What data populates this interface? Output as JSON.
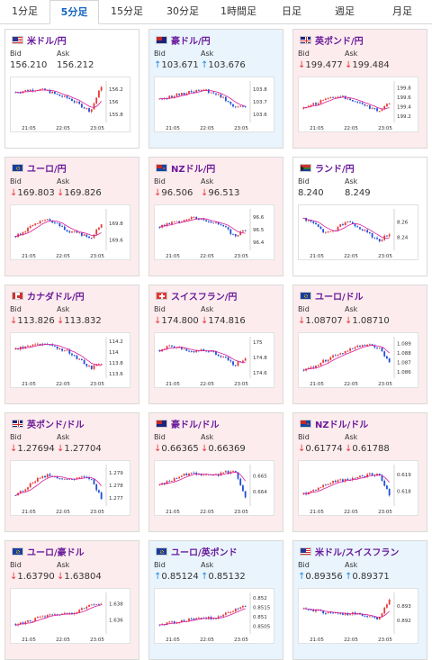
{
  "tabs": [
    {
      "label": "1分足",
      "active": false
    },
    {
      "label": "5分足",
      "active": true
    },
    {
      "label": "15分足",
      "active": false
    },
    {
      "label": "30分足",
      "active": false
    },
    {
      "label": "1時間足",
      "active": false
    },
    {
      "label": "日足",
      "active": false
    },
    {
      "label": "週足",
      "active": false
    },
    {
      "label": "月足",
      "active": false
    }
  ],
  "labels": {
    "bid": "Bid",
    "ask": "Ask"
  },
  "colors": {
    "up": "#1e88e5",
    "down": "#e53935",
    "pair": "#6a1b9a",
    "ma": "#d81b9a"
  },
  "cards": [
    {
      "pair": "米ドル/円",
      "flag": "us",
      "dir": "none",
      "bid": "156.210",
      "ask": "156.212",
      "yticks": [
        "156.2",
        "156",
        "155.8"
      ],
      "xticks": [
        "21:05",
        "22:05",
        "23:05"
      ],
      "chart_data": {
        "type": "candlestick",
        "ylim": [
          155.7,
          156.3
        ],
        "trend": [
          156.15,
          156.18,
          156.2,
          156.17,
          156.1,
          156.05,
          155.95,
          155.85,
          156.25
        ]
      }
    },
    {
      "pair": "豪ドル/円",
      "flag": "au",
      "dir": "up",
      "bid": "103.671",
      "ask": "103.676",
      "yticks": [
        "103.8",
        "103.7",
        "103.6"
      ],
      "xticks": [
        "21:05",
        "22:05",
        "23:05"
      ],
      "chart_data": {
        "type": "candlestick",
        "ylim": [
          103.55,
          103.85
        ],
        "trend": [
          103.72,
          103.74,
          103.76,
          103.78,
          103.8,
          103.77,
          103.73,
          103.66,
          103.67
        ]
      }
    },
    {
      "pair": "英ポンド/円",
      "flag": "uk",
      "dir": "down",
      "bid": "199.477",
      "ask": "199.484",
      "yticks": [
        "199.8",
        "199.6",
        "199.4",
        "199.2"
      ],
      "xticks": [
        "21:05",
        "22:05",
        "23:05"
      ],
      "chart_data": {
        "type": "candlestick",
        "ylim": [
          199.1,
          199.9
        ],
        "trend": [
          199.35,
          199.45,
          199.55,
          199.62,
          199.58,
          199.5,
          199.4,
          199.3,
          199.48
        ]
      }
    },
    {
      "pair": "ユーロ/円",
      "flag": "eu",
      "dir": "down",
      "bid": "169.803",
      "ask": "169.826",
      "yticks": [
        "169.8",
        "169.6"
      ],
      "xticks": [
        "21:05",
        "22:05",
        "23:05"
      ],
      "chart_data": {
        "type": "candlestick",
        "ylim": [
          169.5,
          169.95
        ],
        "trend": [
          169.65,
          169.72,
          169.8,
          169.84,
          169.78,
          169.7,
          169.68,
          169.62,
          169.8
        ]
      }
    },
    {
      "pair": "NZドル/円",
      "flag": "nz",
      "dir": "down",
      "bid": "96.506",
      "ask": "96.513",
      "yticks": [
        "96.6",
        "96.5",
        "96.4"
      ],
      "xticks": [
        "21:05",
        "22:05",
        "23:05"
      ],
      "chart_data": {
        "type": "candlestick",
        "ylim": [
          96.35,
          96.65
        ],
        "trend": [
          96.52,
          96.55,
          96.57,
          96.6,
          96.58,
          96.56,
          96.52,
          96.45,
          96.5
        ]
      }
    },
    {
      "pair": "ランド/円",
      "flag": "za",
      "dir": "none",
      "bid": "8.240",
      "ask": "8.249",
      "yticks": [
        "8.26",
        "8.24"
      ],
      "xticks": [
        "21:05",
        "22:05",
        "23:05"
      ],
      "chart_data": {
        "type": "candlestick",
        "ylim": [
          8.225,
          8.275
        ],
        "trend": [
          8.265,
          8.258,
          8.245,
          8.25,
          8.262,
          8.255,
          8.245,
          8.235,
          8.245
        ]
      }
    },
    {
      "pair": "カナダドル/円",
      "flag": "ca",
      "dir": "down",
      "bid": "113.826",
      "ask": "113.832",
      "yticks": [
        "114.2",
        "114",
        "113.8",
        "113.6"
      ],
      "xticks": [
        "21:05",
        "22:05",
        "23:05"
      ],
      "chart_data": {
        "type": "candlestick",
        "ylim": [
          113.55,
          114.25
        ],
        "trend": [
          114.05,
          114.1,
          114.15,
          114.12,
          114.08,
          114.0,
          113.85,
          113.7,
          113.8
        ]
      }
    },
    {
      "pair": "スイスフラン/円",
      "flag": "ch",
      "dir": "down",
      "bid": "174.800",
      "ask": "174.816",
      "yticks": [
        "175",
        "174.8",
        "174.6"
      ],
      "xticks": [
        "21:05",
        "22:05",
        "23:05"
      ],
      "chart_data": {
        "type": "candlestick",
        "ylim": [
          174.55,
          175.05
        ],
        "trend": [
          174.9,
          174.95,
          174.92,
          174.88,
          174.9,
          174.86,
          174.8,
          174.7,
          174.8
        ]
      }
    },
    {
      "pair": "ユーロ/ドル",
      "flag": "eu",
      "dir": "down",
      "bid": "1.08707",
      "ask": "1.08710",
      "yticks": [
        "1.089",
        "1.088",
        "1.087",
        "1.086"
      ],
      "xticks": [
        "21:05",
        "22:05",
        "23:05"
      ],
      "chart_data": {
        "type": "candlestick",
        "ylim": [
          1.0855,
          1.0895
        ],
        "trend": [
          1.0862,
          1.0866,
          1.0872,
          1.0878,
          1.0882,
          1.0886,
          1.0888,
          1.0885,
          1.0871
        ]
      }
    },
    {
      "pair": "英ポンド/ドル",
      "flag": "uk",
      "dir": "down",
      "bid": "1.27694",
      "ask": "1.27704",
      "yticks": [
        "1.279",
        "1.278",
        "1.277"
      ],
      "xticks": [
        "21:05",
        "22:05",
        "23:05"
      ],
      "chart_data": {
        "type": "candlestick",
        "ylim": [
          1.2765,
          1.2795
        ],
        "trend": [
          1.2772,
          1.2778,
          1.2785,
          1.2788,
          1.2786,
          1.2784,
          1.2786,
          1.2785,
          1.277
        ]
      }
    },
    {
      "pair": "豪ドル/ドル",
      "flag": "au",
      "dir": "down",
      "bid": "0.66365",
      "ask": "0.66369",
      "yticks": [
        "0.665",
        "0.664"
      ],
      "xticks": [
        "21:05",
        "22:05",
        "23:05"
      ],
      "chart_data": {
        "type": "candlestick",
        "ylim": [
          0.6632,
          0.6656
        ],
        "trend": [
          0.6644,
          0.6647,
          0.665,
          0.6652,
          0.6651,
          0.665,
          0.6652,
          0.6653,
          0.6637
        ]
      }
    },
    {
      "pair": "NZドル/ドル",
      "flag": "nz",
      "dir": "down",
      "bid": "0.61774",
      "ask": "0.61788",
      "yticks": [
        "0.619",
        "0.618"
      ],
      "xticks": [
        "21:05",
        "22:05",
        "23:05"
      ],
      "chart_data": {
        "type": "candlestick",
        "ylim": [
          0.6172,
          0.6195
        ],
        "trend": [
          0.6178,
          0.6181,
          0.6184,
          0.6186,
          0.6187,
          0.6188,
          0.619,
          0.619,
          0.6178
        ]
      }
    },
    {
      "pair": "ユーロ/豪ドル",
      "flag": "eu",
      "dir": "down",
      "bid": "1.63790",
      "ask": "1.63804",
      "yticks": [
        "1.638",
        "1.636"
      ],
      "xticks": [
        "21:05",
        "22:05",
        "23:05"
      ],
      "chart_data": {
        "type": "candlestick",
        "ylim": [
          1.6345,
          1.6392
        ],
        "trend": [
          1.6355,
          1.6357,
          1.6362,
          1.6365,
          1.6367,
          1.6368,
          1.6372,
          1.6378,
          1.6381
        ]
      }
    },
    {
      "pair": "ユーロ/英ポンド",
      "flag": "eu",
      "dir": "up",
      "bid": "0.85124",
      "ask": "0.85132",
      "yticks": [
        "0.852",
        "0.8515",
        "0.851",
        "0.8505"
      ],
      "xticks": [
        "21:05",
        "22:05",
        "23:05"
      ],
      "chart_data": {
        "type": "candlestick",
        "ylim": [
          0.8502,
          0.8522
        ],
        "trend": [
          0.8506,
          0.8507,
          0.8508,
          0.8509,
          0.851,
          0.8509,
          0.8511,
          0.8514,
          0.8516
        ]
      }
    },
    {
      "pair": "米ドル/スイスフラン",
      "flag": "us",
      "dir": "up",
      "bid": "0.89356",
      "ask": "0.89371",
      "yticks": [
        "0.893",
        "0.892"
      ],
      "xticks": [
        "21:05",
        "22:05",
        "23:05"
      ],
      "chart_data": {
        "type": "candlestick",
        "ylim": [
          0.8912,
          0.8938
        ],
        "trend": [
          0.8928,
          0.8927,
          0.8925,
          0.8926,
          0.8924,
          0.8925,
          0.8922,
          0.8921,
          0.8935
        ]
      }
    }
  ]
}
